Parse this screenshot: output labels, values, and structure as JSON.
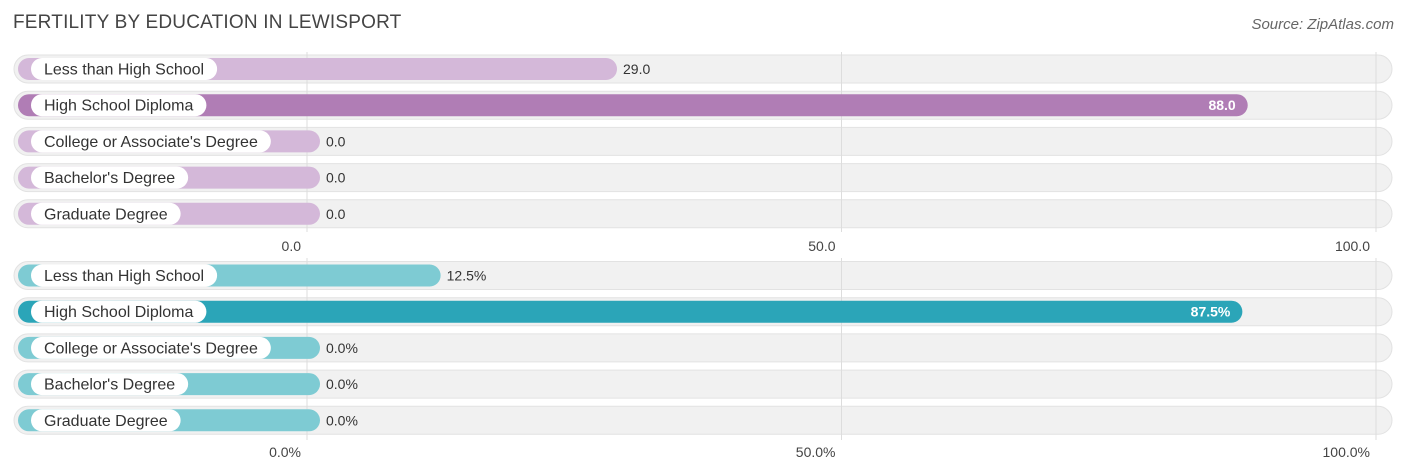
{
  "title": "FERTILITY BY EDUCATION IN LEWISPORT",
  "source": "Source: ZipAtlas.com",
  "chart_data": [
    {
      "type": "bar",
      "orientation": "horizontal",
      "categories": [
        "Less than High School",
        "High School Diploma",
        "College or Associate's Degree",
        "Bachelor's Degree",
        "Graduate Degree"
      ],
      "values": [
        29.0,
        88.0,
        0.0,
        0.0,
        0.0
      ],
      "value_labels": [
        "29.0",
        "88.0",
        "0.0",
        "0.0",
        "0.0"
      ],
      "xlim": [
        0,
        100
      ],
      "ticks": [
        "0.0",
        "50.0",
        "100.0"
      ],
      "bar_color": "#d4b8d9",
      "highlight_color": "#b07db5",
      "highlight_index": 1
    },
    {
      "type": "bar",
      "orientation": "horizontal",
      "categories": [
        "Less than High School",
        "High School Diploma",
        "College or Associate's Degree",
        "Bachelor's Degree",
        "Graduate Degree"
      ],
      "values": [
        12.5,
        87.5,
        0.0,
        0.0,
        0.0
      ],
      "value_labels": [
        "12.5%",
        "87.5%",
        "0.0%",
        "0.0%",
        "0.0%"
      ],
      "xlim": [
        0,
        100
      ],
      "ticks": [
        "0.0%",
        "50.0%",
        "100.0%"
      ],
      "bar_color": "#7ecbd3",
      "highlight_color": "#2ba5b8",
      "highlight_index": 1
    }
  ]
}
